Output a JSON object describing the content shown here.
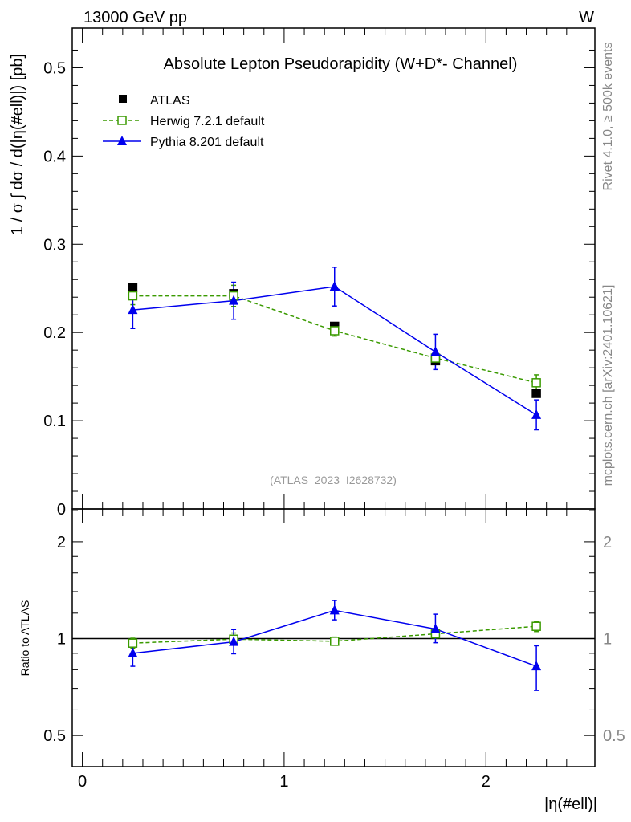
{
  "header": {
    "left": "13000 GeV pp",
    "right": "W"
  },
  "side_labels": {
    "rivet": "Rivet 4.1.0, ≥ 500k events",
    "mcplots": "mcplots.cern.ch [arXiv:2401.10621]"
  },
  "colors": {
    "atlas": "#000000",
    "herwig": "#3a9a00",
    "pythia": "#0000ee"
  },
  "chart_data": [
    {
      "type": "scatter",
      "title": "Absolute Lepton Pseudorapidity (W+D*- Channel)",
      "annotation": "(ATLAS_2023_I2628732)",
      "xlabel": "|η(#ell)|",
      "ylabel": "1 / σ ∫ dσ / d(|η(#ell)|) [pb]",
      "xlim": [
        -0.05,
        2.54
      ],
      "ylim": [
        0,
        0.545
      ],
      "xticks": [
        0,
        1,
        2
      ],
      "xtick_labels": [
        "0",
        "1",
        "2"
      ],
      "yticks": [
        0,
        0.1,
        0.2,
        0.3,
        0.4,
        0.5
      ],
      "ytick_labels": [
        "0",
        "0.1",
        "0.2",
        "0.3",
        "0.4",
        "0.5"
      ],
      "legend_position": "top-left",
      "x": [
        0.25,
        0.75,
        1.25,
        1.75,
        2.25
      ],
      "series": [
        {
          "name": "ATLAS",
          "style": "marker",
          "values": [
            0.251,
            0.244,
            0.207,
            0.168,
            0.131
          ],
          "errors": [
            0.002,
            0.002,
            0.002,
            0.002,
            0.002
          ]
        },
        {
          "name": "Herwig 7.2.1 default",
          "style": "dashed",
          "values": [
            0.2415,
            0.2415,
            0.202,
            0.171,
            0.143
          ],
          "errors": [
            0.01,
            0.012,
            0.006,
            0.006,
            0.009
          ]
        },
        {
          "name": "Pythia 8.201 default",
          "style": "solid",
          "values": [
            0.2255,
            0.236,
            0.252,
            0.178,
            0.1066
          ],
          "errors": [
            0.021,
            0.021,
            0.022,
            0.02,
            0.017
          ]
        }
      ]
    },
    {
      "type": "scatter",
      "ylabel": "Ratio to ATLAS",
      "yscale": "log",
      "ylim": [
        0.4,
        2.53
      ],
      "yticks": [
        0.5,
        1,
        2
      ],
      "ytick_labels": [
        "0.5",
        "1",
        "2"
      ],
      "reference_line": 1,
      "x": [
        0.25,
        0.75,
        1.25,
        1.75,
        2.25
      ],
      "series": [
        {
          "name": "Herwig 7.2.1 default",
          "values": [
            0.968,
            0.996,
            0.981,
            1.035,
            1.092
          ],
          "err_lo": [
            0.035,
            0.04,
            0.025,
            0.03,
            0.04
          ],
          "err_hi": [
            0.035,
            0.045,
            0.03,
            0.04,
            0.04
          ]
        },
        {
          "name": "Pythia 8.201 default",
          "values": [
            0.9,
            0.977,
            1.224,
            1.071,
            0.82
          ],
          "err_lo": [
            0.08,
            0.08,
            0.08,
            0.1,
            0.13
          ],
          "err_hi": [
            0.087,
            0.09,
            0.09,
            0.12,
            0.13
          ]
        }
      ]
    }
  ]
}
